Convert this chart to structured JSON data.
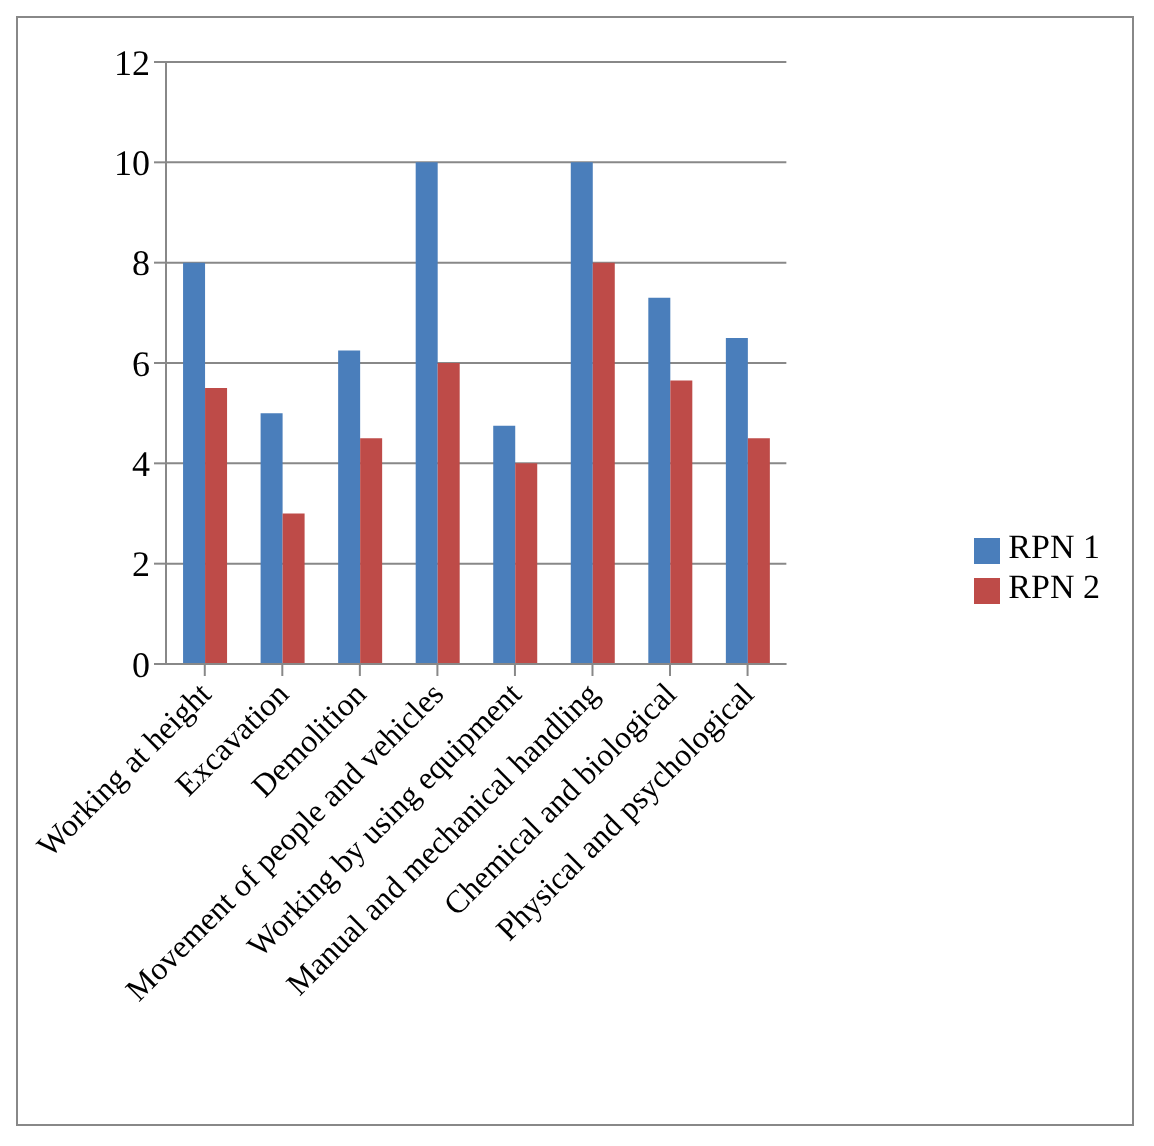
{
  "chart_data": {
    "type": "bar",
    "categories": [
      "Working at height",
      "Excavation",
      "Demolition",
      "Movement of people and vehicles",
      "Working by using equipment",
      "Manual and mechanical handling",
      "Chemical and biological",
      "Physical and psychological"
    ],
    "series": [
      {
        "name": "RPN 1",
        "color": "#4a7ebb",
        "values": [
          8,
          5,
          6.25,
          10,
          4.75,
          10,
          7.3,
          6.5
        ]
      },
      {
        "name": "RPN 2",
        "color": "#be4b48",
        "values": [
          5.5,
          3,
          4.5,
          6,
          4,
          8,
          5.65,
          4.5
        ]
      }
    ],
    "ylim": [
      0,
      12
    ],
    "yticks": [
      0,
      2,
      4,
      6,
      8,
      10,
      12
    ],
    "grid": "y",
    "legend": "right"
  }
}
